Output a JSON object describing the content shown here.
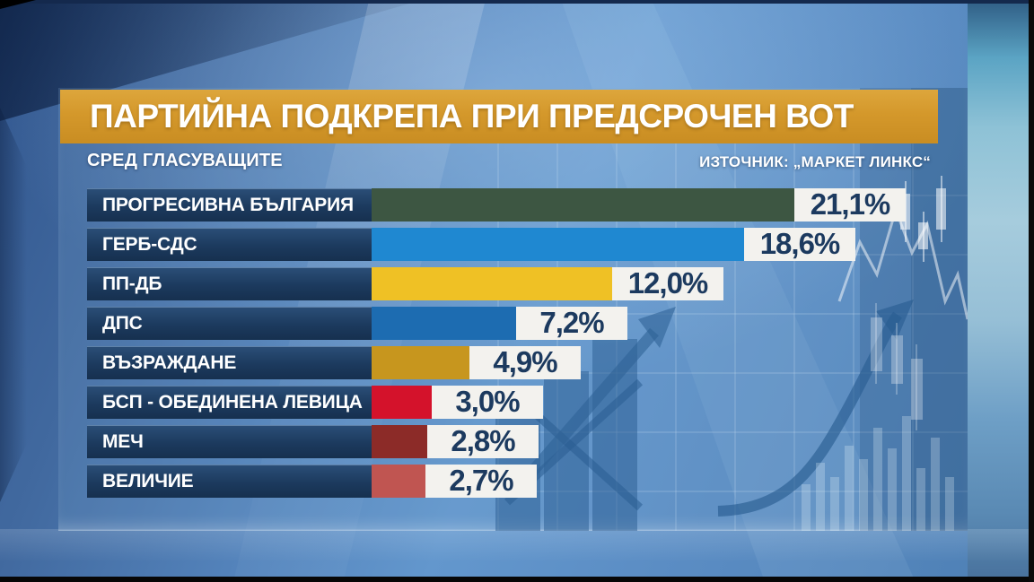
{
  "header": {
    "title": "ПАРТИЙНА ПОДКРЕПА ПРИ ПРЕДСРОЧЕН ВОТ",
    "subtitle": "СРЕД ГЛАСУВАЩИТЕ",
    "source": "ИЗТОЧНИК: „МАРКЕТ ЛИНКС“"
  },
  "chart_data": {
    "type": "bar",
    "orientation": "horizontal",
    "title": "ПАРТИЙНА ПОДКРЕПА ПРИ ПРЕДСРОЧЕН ВОТ",
    "subtitle": "СРЕД ГЛАСУВАЩИТЕ",
    "source": "ИЗТОЧНИК: „МАРКЕТ ЛИНКС“",
    "unit": "%",
    "decimal_separator": ",",
    "categories": [
      "ПРОГРЕСИВНА БЪЛГАРИЯ",
      "ГЕРБ-СДС",
      "ПП-ДБ",
      "ДПС",
      "ВЪЗРАЖДАНЕ",
      "БСП - ОБЕДИНЕНА ЛЕВИЦА",
      "МЕЧ",
      "ВЕЛИЧИЕ"
    ],
    "values": [
      21.1,
      18.6,
      12.0,
      7.2,
      4.9,
      3.0,
      2.8,
      2.7
    ],
    "value_labels": [
      "21,1%",
      "18,6%",
      "12,0%",
      "7,2%",
      "4,9%",
      "3,0%",
      "2,8%",
      "2,7%"
    ],
    "bar_colors": [
      "#3d5642",
      "#1f88d1",
      "#efc125",
      "#1d6cb1",
      "#c7961e",
      "#d4122b",
      "#8c2b28",
      "#c05551"
    ],
    "xlim": [
      0,
      29.5
    ],
    "grid": "decorative background grid only",
    "legend": "none"
  },
  "colors": {
    "title_bar_bg": "#d4982b",
    "label_box_bg": "#1d3b5e",
    "value_box_bg": "#f3f2ee",
    "value_text": "#1c3a5f",
    "text_light": "#ffffff",
    "background_blue": "#5585bd"
  }
}
